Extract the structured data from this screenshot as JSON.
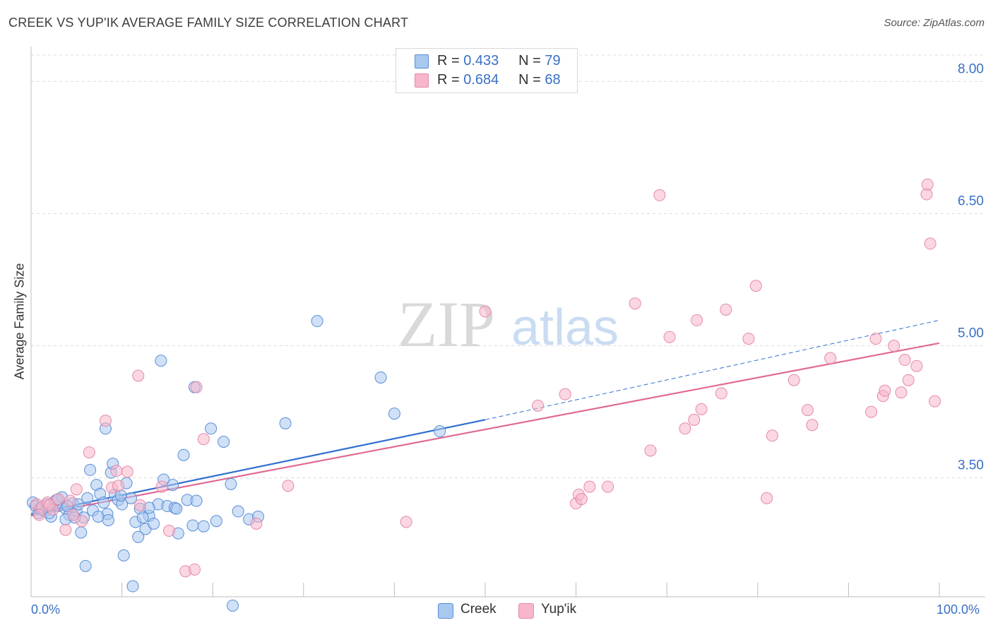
{
  "title": "CREEK VS YUP'IK AVERAGE FAMILY SIZE CORRELATION CHART",
  "source": "Source: ZipAtlas.com",
  "watermark": {
    "zip": "ZIP",
    "atlas": "atlas"
  },
  "legend": {
    "r_label": "R =",
    "n_label": "N =",
    "rows": [
      {
        "r": "0.433",
        "n": "79",
        "color": "#a9c8f0"
      },
      {
        "r": "0.684",
        "n": "68",
        "color": "#f7b6cb"
      }
    ]
  },
  "bottom_legend": [
    "Creek",
    "Yup'ik"
  ],
  "colors": {
    "creek_fill": "#a9c8f0",
    "creek_stroke": "#5b8ed6",
    "creek_line": "#2f6fcf",
    "yupik_fill": "#f7b6cb",
    "yupik_stroke": "#e58aa8",
    "yupik_line": "#e06a94",
    "axis_text": "#3a6fc4"
  },
  "chart_data": {
    "type": "scatter",
    "title": "CREEK VS YUP'IK AVERAGE FAMILY SIZE CORRELATION CHART",
    "xlabel": "",
    "ylabel": "Average Family Size",
    "xlim": [
      0,
      100
    ],
    "ylim": [
      2.15,
      8.3
    ],
    "x_tick_labels": [
      "0.0%",
      "100.0%"
    ],
    "y_ticks": [
      3.5,
      5.0,
      6.5,
      8.0
    ],
    "y_tick_labels": [
      "3.50",
      "5.00",
      "6.50",
      "8.00"
    ],
    "grid": true,
    "legend_position": "top-center",
    "series": [
      {
        "name": "Creek",
        "r": 0.433,
        "n": 79,
        "trend": {
          "x0": 0,
          "y0": 3.09,
          "x1": 50,
          "y1": 4.16,
          "dashed_to_x": 100,
          "dashed_to_y": 5.29
        },
        "points": [
          [
            0.2,
            3.22
          ],
          [
            0.5,
            3.18
          ],
          [
            0.8,
            3.1
          ],
          [
            1.0,
            3.15
          ],
          [
            1.5,
            3.12
          ],
          [
            1.8,
            3.2
          ],
          [
            2.2,
            3.06
          ],
          [
            2.6,
            3.23
          ],
          [
            3.0,
            3.18
          ],
          [
            3.4,
            3.28
          ],
          [
            3.8,
            3.15
          ],
          [
            4.2,
            3.08
          ],
          [
            4.6,
            3.21
          ],
          [
            5.0,
            3.12
          ],
          [
            5.5,
            2.88
          ],
          [
            5.8,
            3.05
          ],
          [
            6.2,
            3.27
          ],
          [
            6.8,
            3.13
          ],
          [
            7.2,
            3.42
          ],
          [
            7.6,
            3.32
          ],
          [
            8.0,
            3.22
          ],
          [
            8.4,
            3.09
          ],
          [
            8.8,
            3.56
          ],
          [
            9.2,
            3.31
          ],
          [
            9.6,
            3.25
          ],
          [
            10.0,
            3.2
          ],
          [
            10.5,
            3.44
          ],
          [
            11.0,
            3.27
          ],
          [
            11.5,
            3.0
          ],
          [
            12.0,
            3.15
          ],
          [
            12.6,
            2.92
          ],
          [
            13.0,
            3.07
          ],
          [
            13.5,
            2.98
          ],
          [
            14.0,
            3.2
          ],
          [
            14.6,
            3.48
          ],
          [
            15.0,
            3.18
          ],
          [
            15.6,
            3.42
          ],
          [
            16.2,
            2.87
          ],
          [
            16.8,
            3.76
          ],
          [
            17.2,
            3.25
          ],
          [
            17.8,
            2.96
          ],
          [
            18.2,
            3.24
          ],
          [
            19.0,
            2.95
          ],
          [
            19.8,
            4.06
          ],
          [
            20.4,
            3.01
          ],
          [
            21.2,
            3.91
          ],
          [
            22.0,
            3.43
          ],
          [
            22.8,
            3.12
          ],
          [
            24.0,
            3.03
          ],
          [
            25.0,
            3.06
          ],
          [
            10.2,
            2.62
          ],
          [
            8.2,
            4.06
          ],
          [
            14.3,
            4.83
          ],
          [
            18.0,
            4.53
          ],
          [
            28.0,
            4.12
          ],
          [
            31.5,
            5.28
          ],
          [
            38.5,
            4.64
          ],
          [
            40.0,
            4.23
          ],
          [
            45.0,
            4.03
          ],
          [
            6.5,
            3.59
          ],
          [
            9.0,
            3.66
          ],
          [
            6.0,
            2.5
          ],
          [
            11.2,
            2.27
          ],
          [
            22.2,
            2.05
          ],
          [
            11.8,
            2.83
          ],
          [
            7.4,
            3.06
          ],
          [
            3.8,
            3.03
          ],
          [
            2.0,
            3.1
          ],
          [
            4.8,
            3.05
          ],
          [
            13.0,
            3.16
          ],
          [
            15.8,
            3.16
          ],
          [
            5.2,
            3.2
          ],
          [
            9.9,
            3.3
          ],
          [
            8.5,
            3.02
          ],
          [
            1.2,
            3.14
          ],
          [
            2.8,
            3.25
          ],
          [
            4.0,
            3.18
          ],
          [
            16.0,
            3.15
          ],
          [
            12.3,
            3.05
          ]
        ]
      },
      {
        "name": "Yup'ik",
        "r": 0.684,
        "n": 68,
        "trend": {
          "x0": 0,
          "y0": 3.07,
          "x1": 100,
          "y1": 5.03
        },
        "points": [
          [
            0.6,
            3.2
          ],
          [
            1.2,
            3.17
          ],
          [
            1.8,
            3.22
          ],
          [
            2.4,
            3.14
          ],
          [
            3.0,
            3.26
          ],
          [
            3.8,
            2.91
          ],
          [
            4.3,
            3.24
          ],
          [
            5.0,
            3.37
          ],
          [
            5.6,
            3.01
          ],
          [
            6.4,
            3.79
          ],
          [
            8.2,
            4.15
          ],
          [
            8.9,
            3.39
          ],
          [
            9.4,
            3.58
          ],
          [
            10.6,
            3.57
          ],
          [
            11.8,
            4.66
          ],
          [
            12.0,
            3.19
          ],
          [
            14.4,
            3.4
          ],
          [
            15.2,
            2.9
          ],
          [
            18.2,
            4.53
          ],
          [
            19.0,
            3.94
          ],
          [
            17.0,
            2.44
          ],
          [
            18.0,
            2.46
          ],
          [
            24.8,
            2.98
          ],
          [
            28.3,
            3.41
          ],
          [
            41.3,
            3.0
          ],
          [
            50.0,
            5.39
          ],
          [
            55.8,
            4.32
          ],
          [
            58.8,
            4.45
          ],
          [
            60.0,
            3.21
          ],
          [
            60.3,
            3.31
          ],
          [
            60.6,
            3.26
          ],
          [
            61.5,
            3.4
          ],
          [
            63.5,
            3.4
          ],
          [
            66.5,
            5.48
          ],
          [
            68.2,
            3.81
          ],
          [
            69.2,
            6.71
          ],
          [
            70.3,
            5.1
          ],
          [
            72.0,
            4.06
          ],
          [
            73.0,
            4.16
          ],
          [
            73.3,
            5.29
          ],
          [
            73.8,
            4.28
          ],
          [
            76.0,
            4.46
          ],
          [
            76.5,
            5.41
          ],
          [
            79.0,
            5.08
          ],
          [
            79.8,
            5.68
          ],
          [
            81.0,
            3.27
          ],
          [
            81.6,
            3.98
          ],
          [
            84.0,
            4.61
          ],
          [
            85.5,
            4.27
          ],
          [
            86.0,
            4.1
          ],
          [
            88.0,
            4.86
          ],
          [
            92.5,
            4.25
          ],
          [
            93.0,
            5.08
          ],
          [
            93.8,
            4.43
          ],
          [
            94.0,
            4.49
          ],
          [
            95.0,
            5.0
          ],
          [
            95.8,
            4.47
          ],
          [
            96.2,
            4.84
          ],
          [
            96.6,
            4.61
          ],
          [
            97.5,
            4.77
          ],
          [
            98.6,
            6.72
          ],
          [
            98.7,
            6.83
          ],
          [
            99.0,
            6.16
          ],
          [
            99.5,
            4.37
          ],
          [
            0.9,
            3.08
          ],
          [
            2.0,
            3.19
          ],
          [
            4.6,
            3.08
          ],
          [
            9.6,
            3.41
          ]
        ]
      }
    ]
  }
}
